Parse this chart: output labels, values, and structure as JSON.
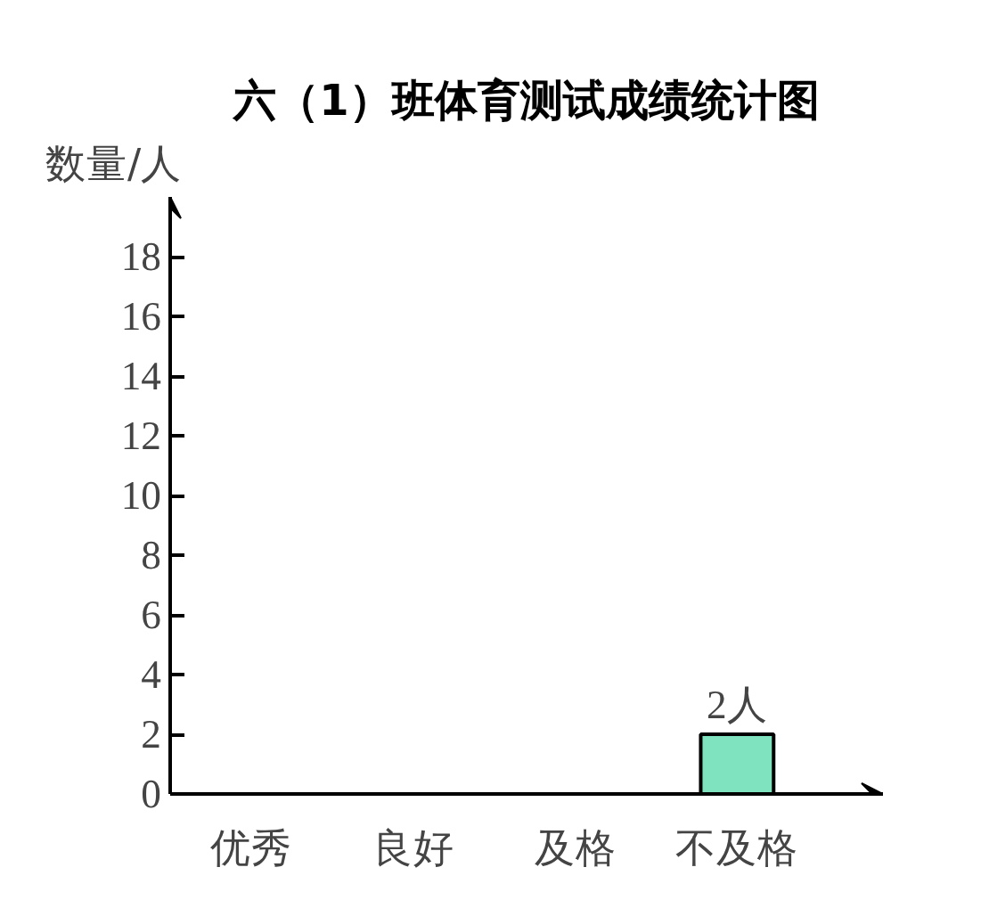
{
  "chart_data": {
    "type": "bar",
    "title": "六（1）班体育测试成绩统计图",
    "ylabel": "数量/人",
    "categories": [
      "优秀",
      "良好",
      "及格",
      "不及格"
    ],
    "values": [
      null,
      null,
      null,
      2
    ],
    "value_labels": [
      null,
      null,
      null,
      "2人"
    ],
    "color": "#7fe3c0",
    "ylim": [
      0,
      20
    ],
    "yticks": [
      0,
      2,
      4,
      6,
      8,
      10,
      12,
      14,
      16,
      18
    ],
    "grid": false
  }
}
